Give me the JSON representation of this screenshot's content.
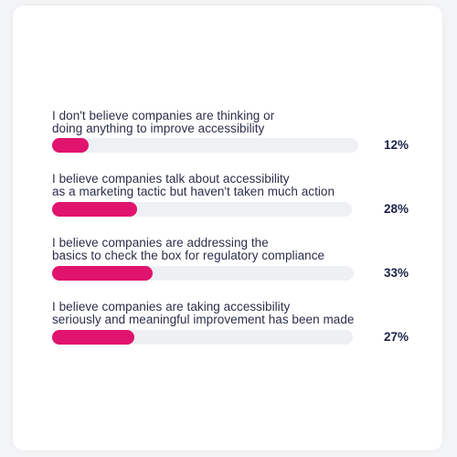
{
  "colors": {
    "bar_fill": "#e0146e",
    "track": "#eef0f3",
    "text": "#2b2f4a",
    "value_text": "#1d2347"
  },
  "chart_data": {
    "type": "bar",
    "orientation": "horizontal",
    "title": "",
    "categories": [
      "I don't believe companies are thinking or doing anything to improve accessibility",
      "I believe companies talk about accessibility as a marketing tactic but haven't taken much action",
      "I believe companies are addressing the basics to check the box for regulatory compliance",
      "I believe companies are taking accessibility seriously and meaningful improvement has been made"
    ],
    "values": [
      12,
      28,
      33,
      27
    ],
    "value_labels": [
      "12%",
      "28%",
      "33%",
      "27%"
    ],
    "xlim": [
      0,
      100
    ],
    "grid": false,
    "legend": "none"
  },
  "items": [
    {
      "line1": "I don't believe companies are thinking or",
      "line2": "doing anything to improve accessibility",
      "value": 12,
      "value_label": "12%"
    },
    {
      "line1": "I believe companies talk about accessibility",
      "line2": "as a marketing tactic but haven't taken much action",
      "value": 28,
      "value_label": "28%"
    },
    {
      "line1": "I believe companies are addressing the",
      "line2": "basics to check the box for regulatory compliance",
      "value": 33,
      "value_label": "33%"
    },
    {
      "line1": "I believe companies are taking accessibility",
      "line2": "seriously and meaningful improvement has been made",
      "value": 27,
      "value_label": "27%"
    }
  ]
}
